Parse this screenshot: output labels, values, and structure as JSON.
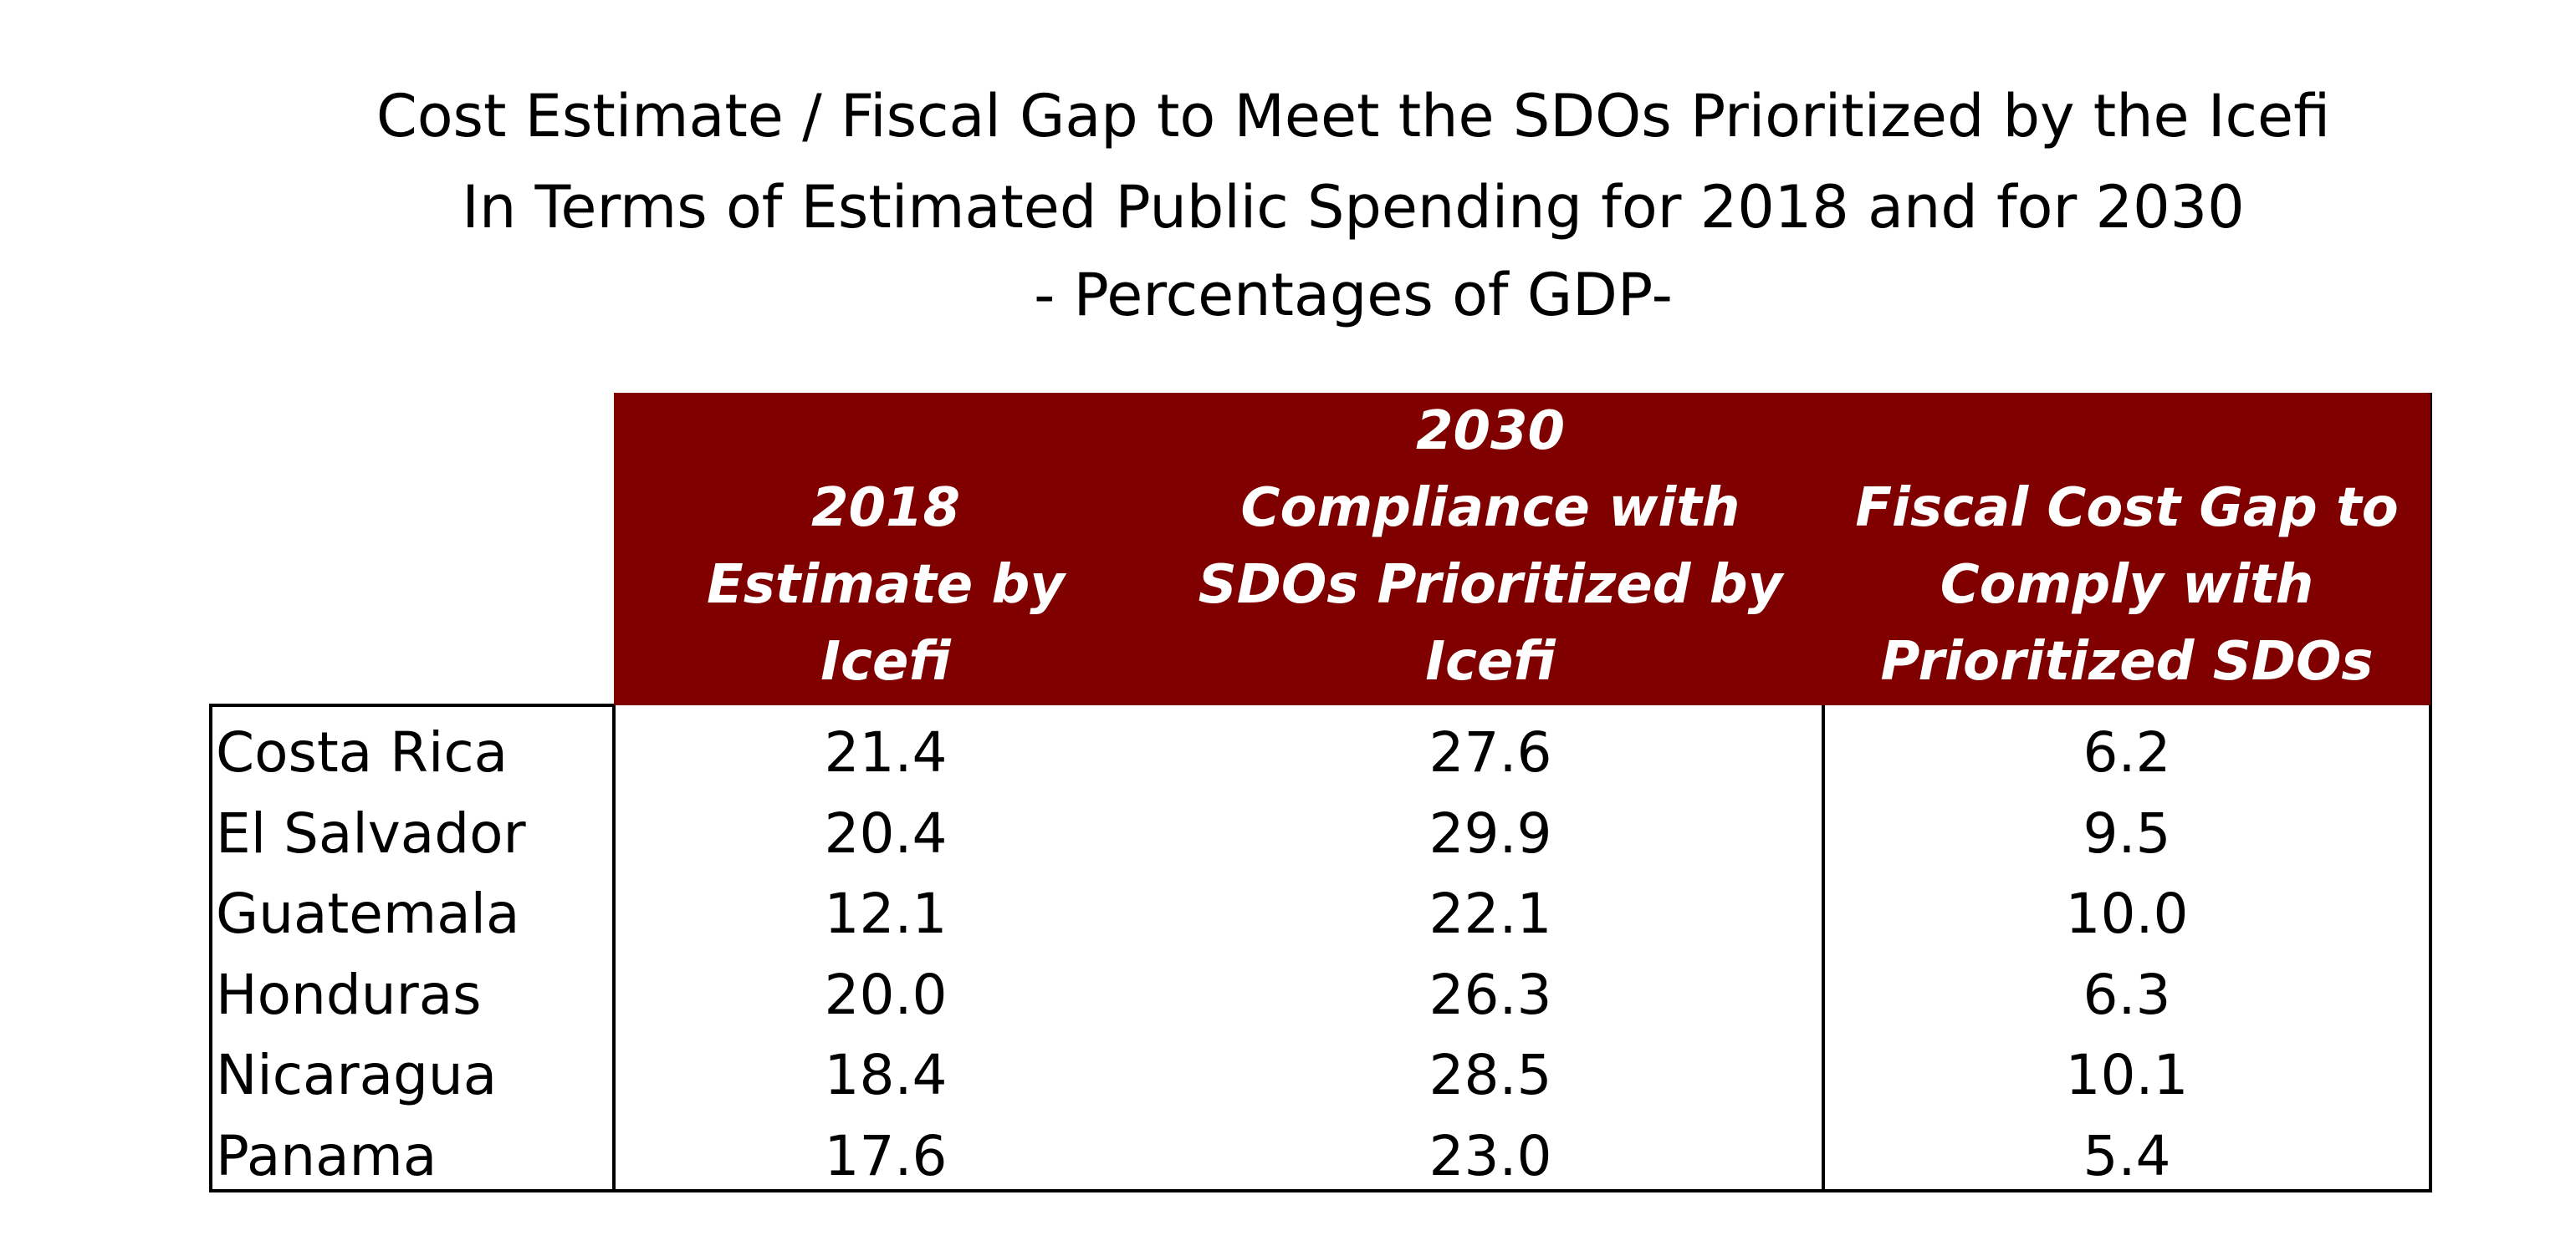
{
  "header": {
    "title_lines": [
      "Cost Estimate / Fiscal Gap to Meet the SDOs Prioritized by the Icefi",
      "In Terms of Estimated Public Spending for 2018 and for 2030",
      "- Percentages of GDP-"
    ]
  },
  "table": {
    "columns": [
      [
        "2018",
        "Estimate by",
        "Icefi"
      ],
      [
        "2030",
        "Compliance with",
        "SDOs Prioritized by",
        "Icefi"
      ],
      [
        "Fiscal Cost Gap to",
        "Comply with",
        "Prioritized SDOs"
      ]
    ],
    "rows": [
      [
        "Costa Rica",
        "21.4",
        "27.6",
        "6.2"
      ],
      [
        "El Salvador",
        "20.4",
        "29.9",
        "9.5"
      ],
      [
        "Guatemala",
        "12.1",
        "22.1",
        "10.0"
      ],
      [
        "Honduras",
        "20.0",
        "26.3",
        "6.3"
      ],
      [
        "Nicaragua",
        "18.4",
        "28.5",
        "10.1"
      ],
      [
        "Panama",
        "17.6",
        "23.0",
        "5.4"
      ]
    ]
  }
}
